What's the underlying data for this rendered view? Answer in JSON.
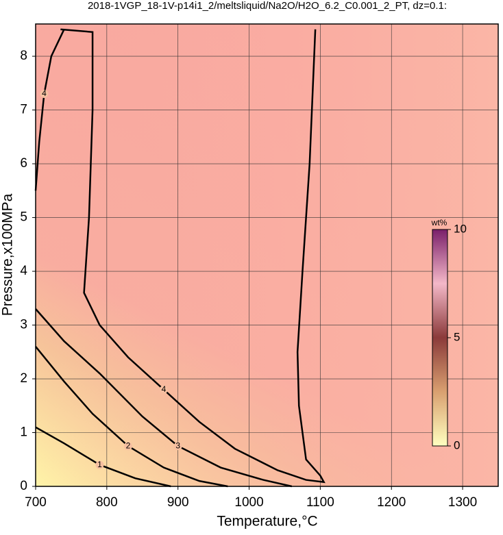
{
  "chart_data": {
    "type": "contour",
    "title": "2018-1VGP_18-1V-p14i1_2/meltsliquid/Na2O/H2O_6.2_C0.001_2_PT, dz=0.1:",
    "x_label": "Temperature,°C",
    "y_label": "Pressure,x100MPa",
    "xlim": [
      700,
      1350
    ],
    "ylim": [
      0,
      8.6
    ],
    "xticks": [
      700,
      800,
      900,
      1000,
      1100,
      1200,
      1300
    ],
    "yticks": [
      0,
      1,
      2,
      3,
      4,
      5,
      6,
      7,
      8
    ],
    "grid": true,
    "line_color": "#000000",
    "contours": [
      {
        "level": 1,
        "x": [
          700,
          740,
          790,
          840,
          890
        ],
        "y": [
          1.1,
          0.8,
          0.4,
          0.15,
          0
        ]
      },
      {
        "level": 2,
        "x": [
          700,
          740,
          780,
          830,
          880,
          930,
          970
        ],
        "y": [
          2.6,
          1.95,
          1.35,
          0.75,
          0.35,
          0.1,
          0
        ]
      },
      {
        "level": 3,
        "x": [
          700,
          740,
          790,
          850,
          900,
          960,
          1020,
          1060
        ],
        "y": [
          3.3,
          2.7,
          2.1,
          1.3,
          0.75,
          0.35,
          0.12,
          0
        ]
      },
      {
        "level": 4,
        "x": [
          735,
          780,
          780,
          775,
          768,
          790,
          830,
          880,
          930,
          980,
          1040,
          1080,
          1105,
          1100,
          1080,
          1070,
          1068,
          1075,
          1085,
          1093
        ],
        "y": [
          8.5,
          8.45,
          7,
          5,
          3.6,
          3.0,
          2.4,
          1.8,
          1.2,
          0.7,
          0.3,
          0.12,
          0.08,
          0.2,
          0.5,
          1.5,
          2.5,
          4,
          6,
          8.5
        ]
      },
      {
        "level": 4,
        "x": [
          700,
          705,
          712,
          722,
          740
        ],
        "y": [
          5.5,
          6.4,
          7.3,
          8.0,
          8.5
        ]
      }
    ],
    "colorbar": {
      "label": "wt%",
      "lim": [
        0,
        10
      ],
      "ticks": [
        0,
        5,
        10
      ],
      "colors": [
        "#ffffc0",
        "#d9a070",
        "#8b3a3a",
        "#f4b8c8",
        "#7a1f6a"
      ]
    }
  }
}
